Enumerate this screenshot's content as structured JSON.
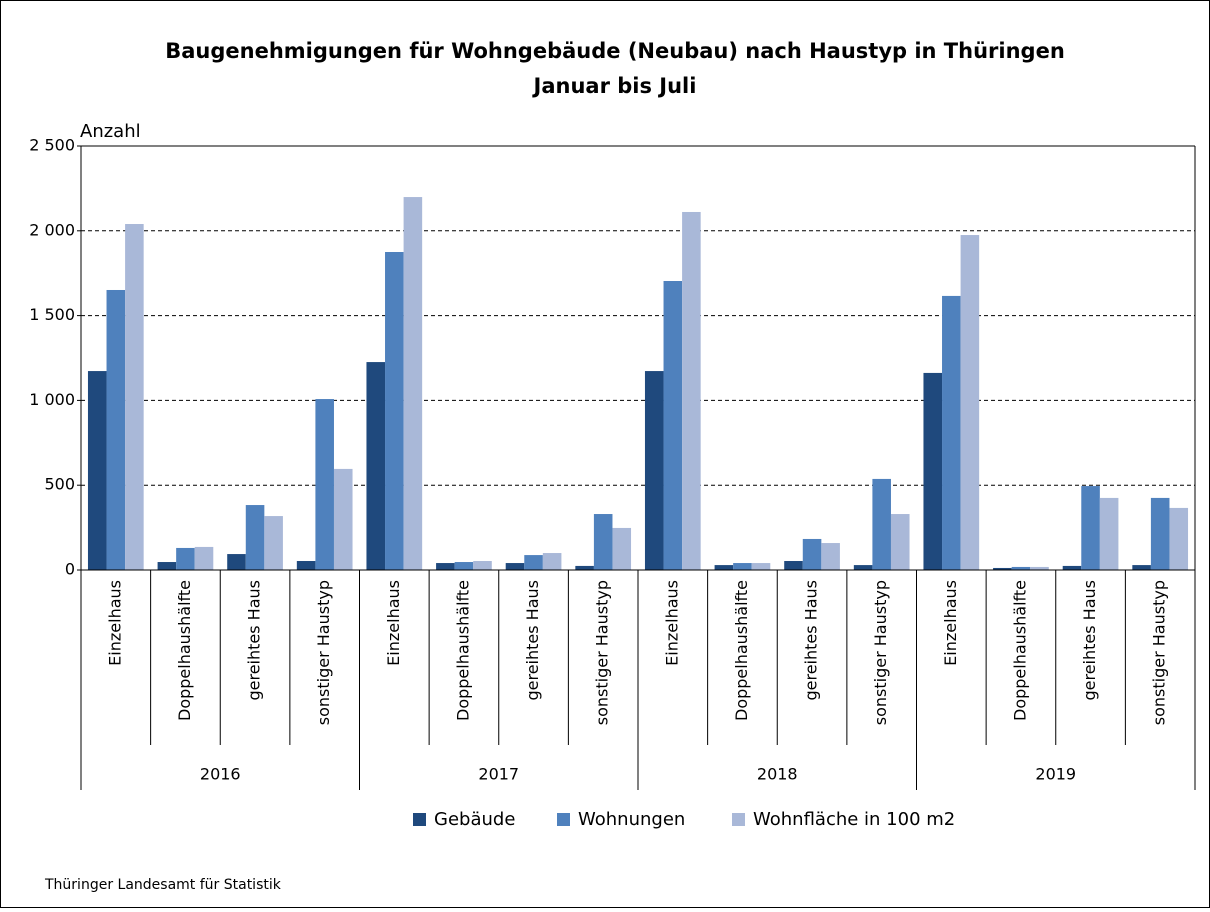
{
  "chart_data": {
    "type": "bar",
    "title": "Baugenehmigungen für Wohngebäude (Neubau) nach Haustyp in Thüringen",
    "subtitle": "Januar bis Juli",
    "y_label": "Anzahl",
    "categories": [
      "Einzelhaus",
      "Doppelhaushälfte",
      "gereihtes Haus",
      "sonstiger Haustyp",
      "Einzelhaus",
      "Doppelhaushälfte",
      "gereihtes Haus",
      "sonstiger Haustyp",
      "Einzelhaus",
      "Doppelhaushälfte",
      "gereihtes Haus",
      "sonstiger Haustyp",
      "Einzelhaus",
      "Doppelhaushälfte",
      "gereihtes Haus",
      "sonstiger Haustyp"
    ],
    "category_groups": [
      "2016",
      "2017",
      "2018",
      "2019"
    ],
    "series": [
      {
        "name": "Gebäude",
        "color": "#1f497d",
        "values": [
          1173,
          47,
          94,
          53,
          1226,
          41,
          41,
          24,
          1173,
          29,
          53,
          29,
          1162,
          12,
          24,
          29
        ]
      },
      {
        "name": "Wohnungen",
        "color": "#4f81bd",
        "values": [
          1651,
          130,
          383,
          1008,
          1875,
          47,
          88,
          330,
          1704,
          41,
          183,
          537,
          1616,
          18,
          495,
          425
        ]
      },
      {
        "name": "Wohnfläche in 100 m2",
        "color": "#a9b8d8",
        "values": [
          2040,
          136,
          318,
          596,
          2199,
          53,
          100,
          248,
          2111,
          41,
          159,
          330,
          1975,
          18,
          425,
          366
        ]
      }
    ],
    "ylim": [
      0,
      2500
    ],
    "yticks": [
      0,
      500,
      {
        "value": 1000,
        "label": "1 000"
      },
      {
        "value": 1500,
        "label": "1 500"
      },
      {
        "value": 2000,
        "label": "2 000"
      },
      {
        "value": 2500,
        "label": "2 500"
      }
    ],
    "grid": true,
    "legend": "bottom",
    "source": "Thüringer Landesamt für Statistik"
  }
}
